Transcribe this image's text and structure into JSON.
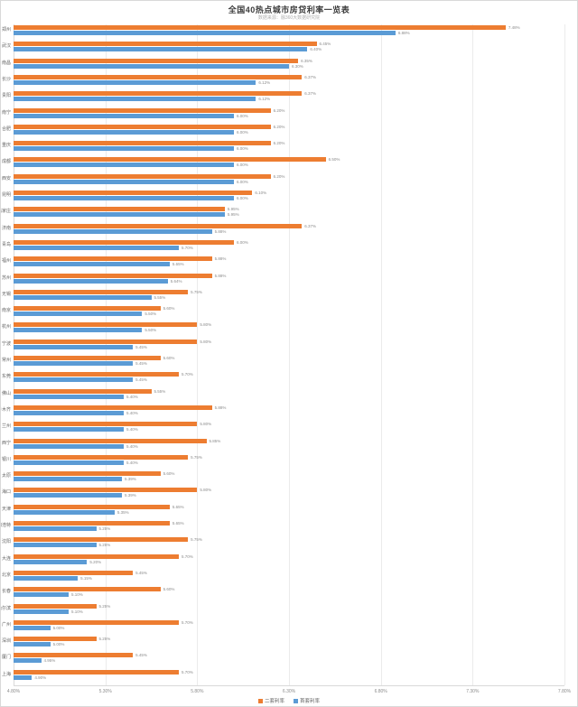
{
  "chart_data": {
    "type": "bar",
    "orientation": "horizontal-grouped",
    "title": "全国40热点城市房贷利率一览表",
    "subtitle": "数据来源：融360大数据研究院",
    "categories": [
      "郑州",
      "武汉",
      "南昌",
      "长沙",
      "贵阳",
      "南宁",
      "合肥",
      "重庆",
      "成都",
      "西安",
      "昆明",
      "石家庄",
      "济南",
      "青岛",
      "福州",
      "苏州",
      "无锡",
      "南京",
      "杭州",
      "宁波",
      "常州",
      "东莞",
      "佛山",
      "乌鲁木齐",
      "兰州",
      "西宁",
      "银川",
      "太原",
      "海口",
      "天津",
      "呼和浩特",
      "沈阳",
      "大连",
      "北京",
      "长春",
      "哈尔滨",
      "广州",
      "深圳",
      "厦门",
      "上海"
    ],
    "series": [
      {
        "name": "二套利率",
        "color": "#ED7D31",
        "values": [
          7.48,
          6.45,
          6.35,
          6.37,
          6.37,
          6.2,
          6.2,
          6.2,
          6.5,
          6.2,
          6.1,
          5.95,
          6.37,
          6.0,
          5.88,
          5.88,
          5.75,
          5.6,
          5.8,
          5.8,
          5.6,
          5.7,
          5.55,
          5.88,
          5.8,
          5.85,
          5.75,
          5.6,
          5.8,
          5.65,
          5.65,
          5.75,
          5.7,
          5.45,
          5.6,
          5.25,
          5.7,
          5.25,
          5.45,
          5.7
        ]
      },
      {
        "name": "首套利率",
        "color": "#5B9BD5",
        "values": [
          6.88,
          6.4,
          6.3,
          6.12,
          6.12,
          6.0,
          6.0,
          6.0,
          6.0,
          6.0,
          6.0,
          5.95,
          5.88,
          5.7,
          5.65,
          5.64,
          5.55,
          5.5,
          5.5,
          5.45,
          5.45,
          5.45,
          5.4,
          5.4,
          5.4,
          5.4,
          5.4,
          5.39,
          5.39,
          5.35,
          5.25,
          5.25,
          5.2,
          5.15,
          5.1,
          5.1,
          5.0,
          5.0,
          4.95,
          4.9
        ]
      }
    ],
    "x_axis": {
      "min": 4.8,
      "max": 7.8,
      "tick_labels": [
        "4.80%",
        "5.30%",
        "5.80%",
        "6.30%",
        "6.80%",
        "7.30%",
        "7.80%"
      ]
    },
    "grid": true,
    "legend_position": "bottom",
    "value_label_format": "0.00%"
  }
}
